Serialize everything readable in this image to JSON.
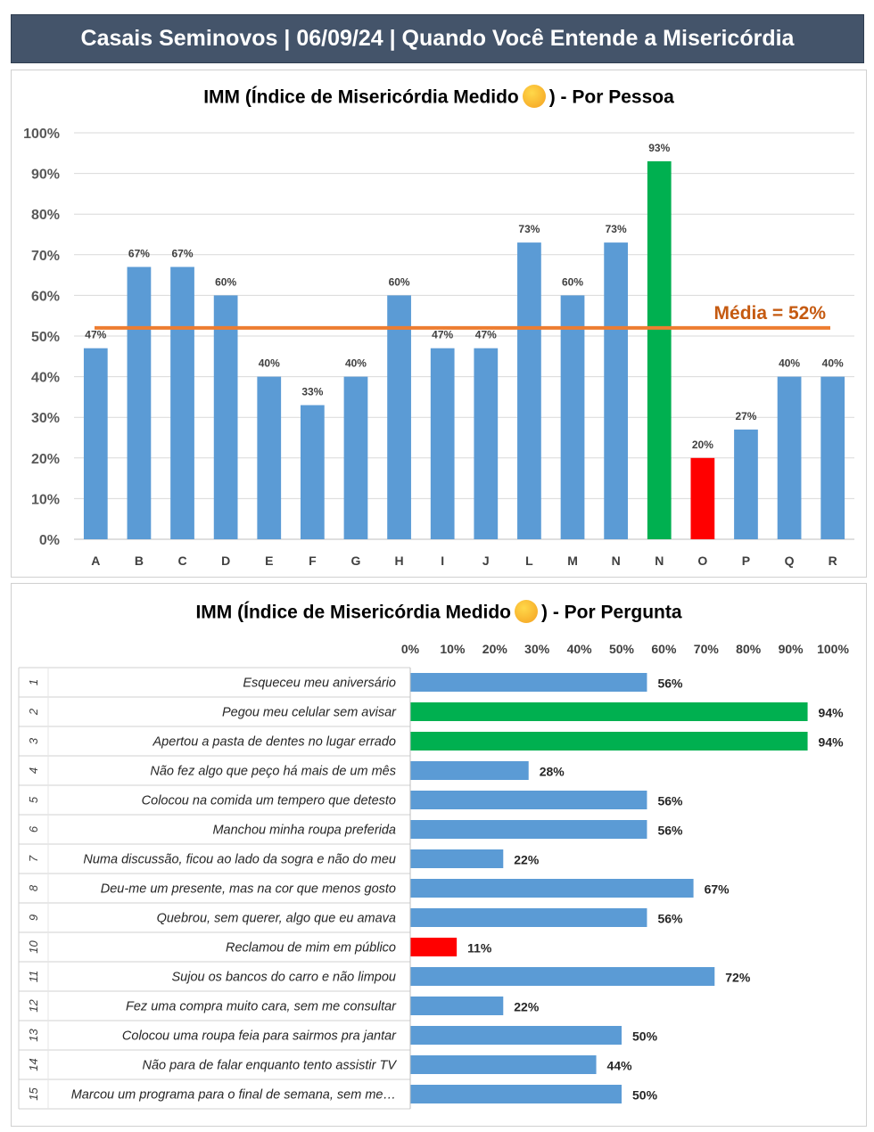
{
  "header": {
    "title": "Casais Seminovos | 06/09/24 | Quando Você Entende a Misericórdia"
  },
  "chart1": {
    "title_before": "IMM (Índice de Misericórdia Medido",
    "title_after": ") - Por Pessoa",
    "emoji_icon": "laughing-emoji-icon",
    "average_label": "Média = 52%"
  },
  "chart2": {
    "title_before": "IMM (Índice de Misericórdia Medido",
    "title_after": ") - Por Pergunta",
    "emoji_icon": "laughing-emoji-icon"
  },
  "colors": {
    "bar": "#5b9bd5",
    "high": "#00b050",
    "low": "#ff0000",
    "average": "#ed7d31",
    "average_text": "#c55a11"
  },
  "chart_data": [
    {
      "type": "bar",
      "title": "IMM (Índice de Misericórdia Medido) - Por Pessoa",
      "categories": [
        "A",
        "B",
        "C",
        "D",
        "E",
        "F",
        "G",
        "H",
        "I",
        "J",
        "L",
        "M",
        "N",
        "N",
        "O",
        "P",
        "Q",
        "R"
      ],
      "values": [
        47,
        67,
        67,
        60,
        40,
        33,
        40,
        60,
        47,
        47,
        73,
        60,
        73,
        93,
        20,
        27,
        40,
        40
      ],
      "labels": [
        "47%",
        "67%",
        "67%",
        "60%",
        "40%",
        "33%",
        "40%",
        "60%",
        "47%",
        "47%",
        "73%",
        "60%",
        "73%",
        "93%",
        "20%",
        "27%",
        "40%",
        "40%"
      ],
      "highlight": {
        "13": "high",
        "14": "low"
      },
      "yticks": [
        "0%",
        "10%",
        "20%",
        "30%",
        "40%",
        "50%",
        "60%",
        "70%",
        "80%",
        "90%",
        "100%"
      ],
      "ylim": [
        0,
        100
      ],
      "average": 52,
      "grid": true
    },
    {
      "type": "bar",
      "orientation": "horizontal",
      "title": "IMM (Índice de Misericórdia Medido) - Por Pergunta",
      "numbers": [
        "1",
        "2",
        "3",
        "4",
        "5",
        "6",
        "7",
        "8",
        "9",
        "10",
        "11",
        "12",
        "13",
        "14",
        "15"
      ],
      "categories": [
        "Esqueceu meu aniversário",
        "Pegou meu celular sem avisar",
        "Apertou a pasta de dentes no lugar errado",
        "Não fez algo que peço há mais de um mês",
        "Colocou na comida um tempero que detesto",
        "Manchou minha roupa preferida",
        "Numa discussão, ficou ao lado da sogra e não do meu",
        "Deu-me um presente, mas na cor que menos gosto",
        "Quebrou, sem querer, algo que eu amava",
        "Reclamou de mim em público",
        "Sujou os bancos do carro e não limpou",
        "Fez uma compra muito cara, sem me consultar",
        "Colocou uma roupa feia para sairmos pra jantar",
        "Não para de falar enquanto tento assistir TV",
        "Marcou um programa para o final de semana, sem me…"
      ],
      "values": [
        56,
        94,
        94,
        28,
        56,
        56,
        22,
        67,
        56,
        11,
        72,
        22,
        50,
        44,
        50
      ],
      "labels": [
        "56%",
        "94%",
        "94%",
        "28%",
        "56%",
        "56%",
        "22%",
        "67%",
        "56%",
        "11%",
        "72%",
        "22%",
        "50%",
        "44%",
        "50%"
      ],
      "highlight": {
        "1": "high",
        "2": "high",
        "9": "low"
      },
      "xticks": [
        "0%",
        "10%",
        "20%",
        "30%",
        "40%",
        "50%",
        "60%",
        "70%",
        "80%",
        "90%",
        "100%"
      ],
      "xlim": [
        0,
        100
      ]
    }
  ]
}
